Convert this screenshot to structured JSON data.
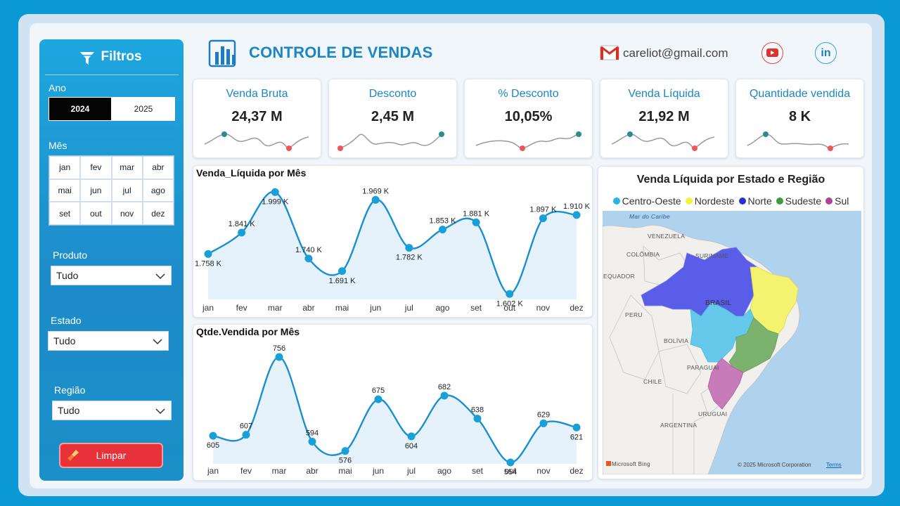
{
  "sidebar": {
    "title": "Filtros",
    "ano_label": "Ano",
    "years": [
      {
        "label": "2024",
        "selected": true
      },
      {
        "label": "2025",
        "selected": false
      }
    ],
    "mes_label": "Mês",
    "months": [
      "jan",
      "fev",
      "mar",
      "abr",
      "mai",
      "jun",
      "jul",
      "ago",
      "set",
      "out",
      "nov",
      "dez"
    ],
    "produto_label": "Produto",
    "produto_value": "Tudo",
    "estado_label": "Estado",
    "estado_value": "Tudo",
    "regiao_label": "Região",
    "regiao_value": "Tudo",
    "limpar_label": "Limpar"
  },
  "header": {
    "title": "CONTROLE DE VENDAS",
    "email": "careliot@gmail.com",
    "linkedin_text": "in"
  },
  "kpis": [
    {
      "title": "Venda Bruta",
      "value": "24,37 M"
    },
    {
      "title": "Desconto",
      "value": "2,45 M"
    },
    {
      "title": "% Desconto",
      "value": "10,05%"
    },
    {
      "title": "Venda Líquida",
      "value": "21,92 M"
    },
    {
      "title": "Quantidade vendida",
      "value": "8 K"
    }
  ],
  "colors": {
    "accent": "#1b86c4",
    "line": "#1a8fd0",
    "spark_line": "#9a9a9a",
    "spark_high": "#2a8c8c",
    "spark_low": "#ee5757",
    "centro_oeste": "#66c9ec",
    "nordeste": "#f3f36f",
    "norte": "#5a5de8",
    "sudeste": "#7bb36e",
    "sul": "#c77bb8"
  },
  "chart_data": [
    {
      "type": "line",
      "title": "Venda_Líquida por Mês",
      "categories": [
        "jan",
        "fev",
        "mar",
        "abr",
        "mai",
        "jun",
        "jul",
        "ago",
        "set",
        "out",
        "nov",
        "dez"
      ],
      "values": [
        1758,
        1841,
        1999,
        1740,
        1691,
        1969,
        1782,
        1853,
        1881,
        1602,
        1897,
        1910
      ],
      "data_labels": [
        "1.758 K",
        "1.841 K",
        "1.999 K",
        "1.740 K",
        "1.691 K",
        "1.969 K",
        "1.782 K",
        "1.853 K",
        "1.881 K",
        "1.602 K",
        "1.897 K",
        "1.910 K"
      ],
      "ylim": [
        1600,
        2000
      ]
    },
    {
      "type": "line",
      "title": "Qtde.Vendida por Mês",
      "categories": [
        "jan",
        "fev",
        "mar",
        "abr",
        "mai",
        "jun",
        "jul",
        "ago",
        "set",
        "out",
        "nov",
        "dez"
      ],
      "values": [
        605,
        607,
        756,
        594,
        576,
        675,
        604,
        682,
        638,
        554,
        629,
        621
      ],
      "data_labels": [
        "605",
        "607",
        "756",
        "594",
        "576",
        "675",
        "604",
        "682",
        "638",
        "554",
        "629",
        "621"
      ],
      "ylim": [
        550,
        760
      ]
    }
  ],
  "map": {
    "title": "Venda Líquida por Estado e Região",
    "legend": [
      {
        "label": "Centro-Oeste",
        "color": "#29b3e6"
      },
      {
        "label": "Nordeste",
        "color": "#f3f33b"
      },
      {
        "label": "Norte",
        "color": "#2b2fd6"
      },
      {
        "label": "Sudeste",
        "color": "#3e9a3e"
      },
      {
        "label": "Sul",
        "color": "#b04494"
      }
    ],
    "labels": {
      "caribe": "Mar do Caribe",
      "venezuela": "VENEZUELA",
      "colombia": "COLÔMBIA",
      "suriname": "SURINAME",
      "equador": "EQUADOR",
      "brasil": "BRASIL",
      "peru": "PERU",
      "bolivia": "BOLÍVIA",
      "paraguai": "PARAGUAI",
      "chile": "CHILE",
      "uruguai": "URUGUAI",
      "argentina": "ARGENTINA"
    },
    "bing": "Microsoft Bing",
    "copyright": "© 2025 Microsoft Corporation",
    "terms": "Terms"
  }
}
